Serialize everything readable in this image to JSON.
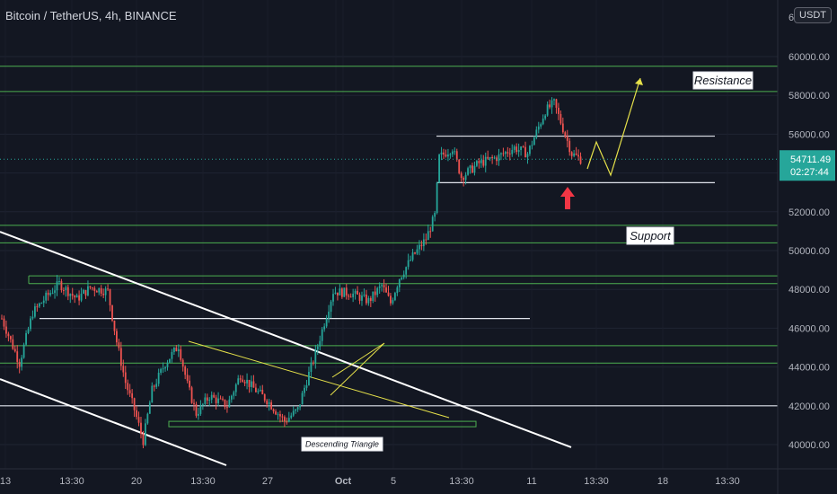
{
  "header": {
    "symbol_title": "Bitcoin / TetherUS, 4h, BINANCE",
    "currency_label": "USDT"
  },
  "colors": {
    "background": "#131722",
    "up": "#26a69a",
    "down": "#ef5350",
    "green_level": "#4caf50",
    "white_line": "#e0e3eb",
    "yellow": "#e6e14a",
    "price_label": "#26a69a",
    "arrow": "#f23645"
  },
  "chart_data": {
    "type": "candlestick",
    "y_axis": {
      "ylim": [
        39500,
        61000
      ],
      "ticks": [
        "40000.00",
        "42000.00",
        "44000.00",
        "46000.00",
        "48000.00",
        "50000.00",
        "52000.00",
        "54000.00",
        "56000.00",
        "58000.00",
        "60000.00"
      ],
      "top_partial_tick": "6"
    },
    "x_axis": {
      "ticks": [
        "13",
        "13:30",
        "20",
        "13:30",
        "27",
        "13:30",
        "Oct",
        "5",
        "13:30",
        "11",
        "13:30",
        "18",
        "13:30"
      ]
    },
    "current_price": {
      "value": "54711.49",
      "countdown": "02:27:44"
    },
    "levels_green": [
      59500,
      58200,
      51300,
      50400,
      48700,
      48300,
      45100,
      44200
    ],
    "levels_white": [
      55900,
      53500,
      46500,
      42000
    ],
    "annotations": {
      "resistance": "Resistance",
      "support": "Support",
      "triangle": "Descending Triangle"
    },
    "keypoints": [
      [
        0,
        46500
      ],
      [
        8,
        44200
      ],
      [
        14,
        46800
      ],
      [
        20,
        47600
      ],
      [
        26,
        48300
      ],
      [
        34,
        47500
      ],
      [
        40,
        48100
      ],
      [
        48,
        47900
      ],
      [
        52,
        45300
      ],
      [
        56,
        43200
      ],
      [
        60,
        41800
      ],
      [
        64,
        40200
      ],
      [
        68,
        42800
      ],
      [
        74,
        44200
      ],
      [
        80,
        45100
      ],
      [
        84,
        43100
      ],
      [
        88,
        41600
      ],
      [
        94,
        42500
      ],
      [
        102,
        42000
      ],
      [
        108,
        43600
      ],
      [
        114,
        42900
      ],
      [
        120,
        42300
      ],
      [
        128,
        41200
      ],
      [
        134,
        41800
      ],
      [
        138,
        43300
      ],
      [
        142,
        44700
      ],
      [
        146,
        46300
      ],
      [
        150,
        47900
      ],
      [
        158,
        47800
      ],
      [
        166,
        47400
      ],
      [
        172,
        48200
      ],
      [
        176,
        47300
      ],
      [
        180,
        48600
      ],
      [
        186,
        49700
      ],
      [
        192,
        50600
      ],
      [
        196,
        51800
      ],
      [
        198,
        54800
      ],
      [
        204,
        55300
      ],
      [
        208,
        53800
      ],
      [
        216,
        54500
      ],
      [
        224,
        54800
      ],
      [
        232,
        55300
      ],
      [
        238,
        55000
      ],
      [
        242,
        56100
      ],
      [
        246,
        57200
      ],
      [
        250,
        57600
      ],
      [
        254,
        56300
      ],
      [
        258,
        55000
      ],
      [
        262,
        54711
      ]
    ],
    "projection": [
      [
        56100,
        0
      ],
      [
        55700,
        0
      ],
      [
        57600,
        0
      ]
    ]
  }
}
